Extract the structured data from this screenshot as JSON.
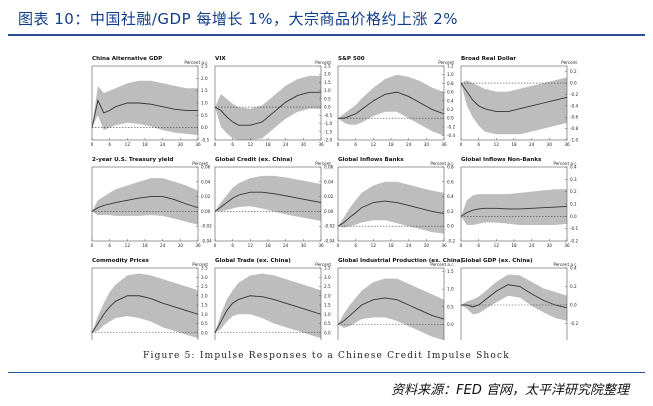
{
  "header": {
    "title": "图表 10：中国社融/GDP 每增长 1%，大宗商品价格约上涨 2%"
  },
  "caption": "Figure 5: Impulse Responses to a Chinese Credit Impulse Shock",
  "source": "资料来源：FED 官网，太平洋研究院整理",
  "colors": {
    "band": "#bdbdbd",
    "line": "#333333",
    "title": "#0f3d8c",
    "rule": "#2a4f9a"
  },
  "chart_data": [
    {
      "type": "area",
      "title": "China Alternative GDP",
      "unit": "Percent a.r.",
      "ylim": [
        -0.5,
        2.5
      ],
      "yticks": [
        "-0.5",
        "0.0",
        "0.5",
        "1.0",
        "1.5",
        "2.0",
        "2.5"
      ],
      "x": [
        0,
        2,
        4,
        6,
        8,
        12,
        16,
        20,
        24,
        28,
        32,
        36
      ],
      "xticks": [
        "0",
        "6",
        "12",
        "18",
        "24",
        "30",
        "36"
      ],
      "center": [
        0,
        1.1,
        0.6,
        0.7,
        0.85,
        1.0,
        1.0,
        0.95,
        0.85,
        0.75,
        0.7,
        0.7
      ],
      "upper": [
        0,
        1.7,
        1.4,
        1.5,
        1.6,
        1.8,
        1.9,
        1.9,
        1.8,
        1.7,
        1.6,
        1.6
      ],
      "lower": [
        0,
        0.5,
        -0.1,
        0.0,
        0.1,
        0.2,
        0.15,
        0.05,
        -0.1,
        -0.2,
        -0.25,
        -0.3
      ]
    },
    {
      "type": "area",
      "title": "VIX",
      "unit": "Percent",
      "ylim": [
        -2.0,
        2.5
      ],
      "yticks": [
        "-2.0",
        "-1.5",
        "-1.0",
        "-0.5",
        "0.0",
        "0.5",
        "1.0",
        "1.5",
        "2.0",
        "2.5"
      ],
      "x": [
        0,
        2,
        4,
        6,
        8,
        12,
        16,
        20,
        24,
        28,
        32,
        36
      ],
      "xticks": [
        "0",
        "6",
        "12",
        "18",
        "24",
        "30",
        "36"
      ],
      "center": [
        0,
        -0.2,
        -0.6,
        -0.9,
        -1.1,
        -1.1,
        -0.9,
        -0.3,
        0.3,
        0.7,
        0.9,
        0.9
      ],
      "upper": [
        0,
        0.8,
        0.5,
        0.2,
        0.0,
        -0.1,
        0.1,
        0.7,
        1.3,
        1.7,
        1.9,
        1.9
      ],
      "lower": [
        0,
        -1.2,
        -1.6,
        -1.9,
        -2.0,
        -2.0,
        -1.9,
        -1.3,
        -0.7,
        -0.3,
        -0.1,
        -0.1
      ]
    },
    {
      "type": "area",
      "title": "S&P 500",
      "unit": "Percent",
      "ylim": [
        -0.5,
        1.2
      ],
      "yticks": [
        "-0.4",
        "-0.2",
        "0.0",
        "0.2",
        "0.4",
        "0.6",
        "0.8",
        "1.0",
        "1.2"
      ],
      "x": [
        0,
        2,
        4,
        6,
        8,
        12,
        16,
        20,
        24,
        28,
        32,
        36
      ],
      "xticks": [
        "0",
        "6",
        "12",
        "18",
        "24",
        "30",
        "36"
      ],
      "center": [
        0,
        0.0,
        0.05,
        0.1,
        0.2,
        0.4,
        0.55,
        0.6,
        0.5,
        0.35,
        0.2,
        0.1
      ],
      "upper": [
        0,
        0.1,
        0.2,
        0.3,
        0.45,
        0.7,
        0.9,
        1.0,
        0.95,
        0.85,
        0.7,
        0.6
      ],
      "lower": [
        0,
        -0.1,
        -0.15,
        -0.15,
        -0.1,
        0.05,
        0.15,
        0.15,
        0.0,
        -0.15,
        -0.3,
        -0.4
      ]
    },
    {
      "type": "area",
      "title": "Broad Real Dollar",
      "unit": "Percent",
      "ylim": [
        -1.0,
        0.3
      ],
      "yticks": [
        "-1.0",
        "-0.8",
        "-0.6",
        "-0.4",
        "-0.2",
        "0.0",
        "0.2"
      ],
      "x": [
        0,
        2,
        4,
        6,
        8,
        12,
        16,
        20,
        24,
        28,
        32,
        36
      ],
      "xticks": [
        "0",
        "6",
        "12",
        "18",
        "24",
        "30",
        "36"
      ],
      "center": [
        0,
        -0.15,
        -0.3,
        -0.4,
        -0.45,
        -0.5,
        -0.5,
        -0.45,
        -0.4,
        -0.35,
        -0.3,
        -0.25
      ],
      "upper": [
        0,
        0.05,
        0.0,
        -0.05,
        -0.1,
        -0.15,
        -0.15,
        -0.1,
        -0.05,
        0.0,
        0.05,
        0.1
      ],
      "lower": [
        0,
        -0.4,
        -0.6,
        -0.75,
        -0.85,
        -0.9,
        -0.9,
        -0.9,
        -0.85,
        -0.8,
        -0.75,
        -0.7
      ]
    },
    {
      "type": "area",
      "title": "2-year U.S. Treasury yield",
      "unit": "Percent",
      "ylim": [
        -0.04,
        0.06
      ],
      "yticks": [
        "-0.04",
        "-0.02",
        "0.00",
        "0.02",
        "0.04",
        "0.06"
      ],
      "x": [
        0,
        2,
        4,
        6,
        8,
        12,
        16,
        20,
        24,
        28,
        32,
        36
      ],
      "xticks": [
        "0",
        "6",
        "12",
        "18",
        "24",
        "30",
        "36"
      ],
      "center": [
        0,
        0.005,
        0.008,
        0.01,
        0.012,
        0.015,
        0.018,
        0.02,
        0.02,
        0.016,
        0.01,
        0.005
      ],
      "upper": [
        0,
        0.015,
        0.02,
        0.025,
        0.03,
        0.035,
        0.04,
        0.045,
        0.045,
        0.04,
        0.035,
        0.028
      ],
      "lower": [
        0,
        -0.005,
        -0.005,
        -0.005,
        -0.006,
        -0.006,
        -0.006,
        -0.005,
        -0.006,
        -0.01,
        -0.014,
        -0.018
      ]
    },
    {
      "type": "area",
      "title": "Global Credit (ex. China)",
      "unit": "Percent",
      "ylim": [
        -0.04,
        0.06
      ],
      "yticks": [
        "-0.04",
        "-0.02",
        "0.00",
        "0.02",
        "0.04",
        "0.06"
      ],
      "x": [
        0,
        2,
        4,
        6,
        8,
        12,
        16,
        20,
        24,
        28,
        32,
        36
      ],
      "xticks": [
        "0",
        "6",
        "12",
        "18",
        "24",
        "30",
        "36"
      ],
      "center": [
        0,
        0.006,
        0.012,
        0.018,
        0.022,
        0.026,
        0.026,
        0.024,
        0.021,
        0.018,
        0.015,
        0.012
      ],
      "upper": [
        0,
        0.012,
        0.022,
        0.032,
        0.038,
        0.045,
        0.048,
        0.048,
        0.046,
        0.043,
        0.04,
        0.037
      ],
      "lower": [
        0,
        0.0,
        0.002,
        0.004,
        0.006,
        0.007,
        0.004,
        0.0,
        -0.004,
        -0.007,
        -0.01,
        -0.013
      ]
    },
    {
      "type": "area",
      "title": "Global Inflows Banks",
      "unit": "Percent a.r.",
      "ylim": [
        -0.2,
        0.8
      ],
      "yticks": [
        "-0.2",
        "0.0",
        "0.2",
        "0.4",
        "0.6",
        "0.8"
      ],
      "x": [
        0,
        2,
        4,
        6,
        8,
        12,
        16,
        20,
        24,
        28,
        32,
        36
      ],
      "xticks": [
        "0",
        "6",
        "12",
        "18",
        "24",
        "30",
        "36"
      ],
      "center": [
        0,
        0.05,
        0.12,
        0.18,
        0.25,
        0.32,
        0.34,
        0.32,
        0.28,
        0.24,
        0.2,
        0.17
      ],
      "upper": [
        0,
        0.12,
        0.25,
        0.35,
        0.45,
        0.55,
        0.6,
        0.6,
        0.56,
        0.52,
        0.48,
        0.45
      ],
      "lower": [
        0,
        -0.02,
        0.0,
        0.02,
        0.05,
        0.08,
        0.08,
        0.04,
        0.0,
        -0.04,
        -0.08,
        -0.1
      ]
    },
    {
      "type": "area",
      "title": "Global Inflows Non-Banks",
      "unit": "Percent a.r.",
      "ylim": [
        -0.2,
        0.4
      ],
      "yticks": [
        "-0.2",
        "-0.1",
        "0.0",
        "0.1",
        "0.2",
        "0.3",
        "0.4"
      ],
      "x": [
        0,
        2,
        4,
        6,
        8,
        12,
        16,
        20,
        24,
        28,
        32,
        36
      ],
      "xticks": [
        "0",
        "6",
        "12",
        "18",
        "24",
        "30",
        "36"
      ],
      "center": [
        0,
        0.03,
        0.05,
        0.06,
        0.065,
        0.065,
        0.06,
        0.06,
        0.065,
        0.07,
        0.075,
        0.08
      ],
      "upper": [
        0,
        0.13,
        0.17,
        0.18,
        0.18,
        0.18,
        0.18,
        0.19,
        0.2,
        0.21,
        0.22,
        0.22
      ],
      "lower": [
        0,
        -0.07,
        -0.07,
        -0.06,
        -0.05,
        -0.05,
        -0.06,
        -0.07,
        -0.07,
        -0.07,
        -0.07,
        -0.06
      ]
    },
    {
      "type": "area",
      "title": "Commodity Prices",
      "unit": "Percent",
      "ylim": [
        -0.5,
        3.5
      ],
      "yticks": [
        "-0.5",
        "0.0",
        "0.5",
        "1.0",
        "1.5",
        "2.0",
        "2.5",
        "3.0",
        "3.5"
      ],
      "x": [
        0,
        2,
        4,
        6,
        8,
        12,
        16,
        20,
        24,
        28,
        32,
        36
      ],
      "xticks": [
        "0",
        "6",
        "12",
        "18",
        "24",
        "30",
        "36"
      ],
      "center": [
        0,
        0.5,
        1.0,
        1.4,
        1.7,
        2.0,
        2.0,
        1.85,
        1.6,
        1.4,
        1.2,
        1.0
      ],
      "upper": [
        0,
        0.9,
        1.6,
        2.2,
        2.6,
        3.1,
        3.2,
        3.1,
        2.9,
        2.7,
        2.5,
        2.3
      ],
      "lower": [
        0,
        0.1,
        0.4,
        0.6,
        0.8,
        0.9,
        0.8,
        0.6,
        0.3,
        0.1,
        -0.1,
        -0.3
      ]
    },
    {
      "type": "area",
      "title": "Global Trade (ex. China)",
      "unit": "Percent",
      "ylim": [
        -0.5,
        3.5
      ],
      "yticks": [
        "-0.5",
        "0.0",
        "0.5",
        "1.0",
        "1.5",
        "2.0",
        "2.5",
        "3.0",
        "3.5"
      ],
      "x": [
        0,
        2,
        4,
        6,
        8,
        12,
        16,
        20,
        24,
        28,
        32,
        36
      ],
      "xticks": [
        "0",
        "6",
        "12",
        "18",
        "24",
        "30",
        "36"
      ],
      "center": [
        0,
        0.6,
        1.2,
        1.6,
        1.8,
        2.0,
        1.95,
        1.8,
        1.6,
        1.4,
        1.2,
        1.0
      ],
      "upper": [
        0,
        1.0,
        1.8,
        2.3,
        2.7,
        3.1,
        3.2,
        3.1,
        2.9,
        2.7,
        2.5,
        2.3
      ],
      "lower": [
        0,
        0.2,
        0.6,
        0.9,
        1.0,
        1.0,
        0.8,
        0.5,
        0.3,
        0.1,
        -0.1,
        -0.3
      ]
    },
    {
      "type": "area",
      "title": "Global Industrial Production (ex. China)",
      "unit": "Percent a.r.",
      "ylim": [
        -0.5,
        1.6
      ],
      "yticks": [
        "-0.5",
        "0.0",
        "0.5",
        "1.0",
        "1.5"
      ],
      "x": [
        0,
        2,
        4,
        6,
        8,
        12,
        16,
        20,
        24,
        28,
        32,
        36
      ],
      "xticks": [
        "0",
        "6",
        "12",
        "18",
        "24",
        "30",
        "36"
      ],
      "center": [
        0,
        0.1,
        0.25,
        0.4,
        0.55,
        0.7,
        0.75,
        0.7,
        0.55,
        0.4,
        0.25,
        0.15
      ],
      "upper": [
        0,
        0.3,
        0.55,
        0.75,
        0.95,
        1.2,
        1.3,
        1.3,
        1.15,
        1.0,
        0.85,
        0.7
      ],
      "lower": [
        0,
        -0.1,
        -0.05,
        0.05,
        0.15,
        0.2,
        0.2,
        0.1,
        -0.05,
        -0.2,
        -0.35,
        -0.45
      ]
    },
    {
      "type": "area",
      "title": "Global GDP (ex. China)",
      "unit": "Percent a.r.",
      "ylim": [
        -0.4,
        0.4
      ],
      "yticks": [
        "-0.4",
        "-0.2",
        "0.0",
        "0.2",
        "0.4"
      ],
      "x": [
        0,
        2,
        4,
        6,
        8,
        12,
        16,
        20,
        24,
        28,
        32,
        36
      ],
      "xticks": [
        "0",
        "6",
        "12",
        "18",
        "24",
        "30",
        "36"
      ],
      "center": [
        0,
        0.0,
        -0.02,
        0.0,
        0.05,
        0.15,
        0.22,
        0.2,
        0.12,
        0.05,
        0.0,
        -0.03
      ],
      "upper": [
        0,
        0.04,
        0.06,
        0.09,
        0.14,
        0.25,
        0.33,
        0.32,
        0.25,
        0.18,
        0.14,
        0.1
      ],
      "lower": [
        0,
        -0.04,
        -0.1,
        -0.09,
        -0.05,
        0.03,
        0.1,
        0.08,
        -0.01,
        -0.08,
        -0.14,
        -0.17
      ]
    }
  ]
}
